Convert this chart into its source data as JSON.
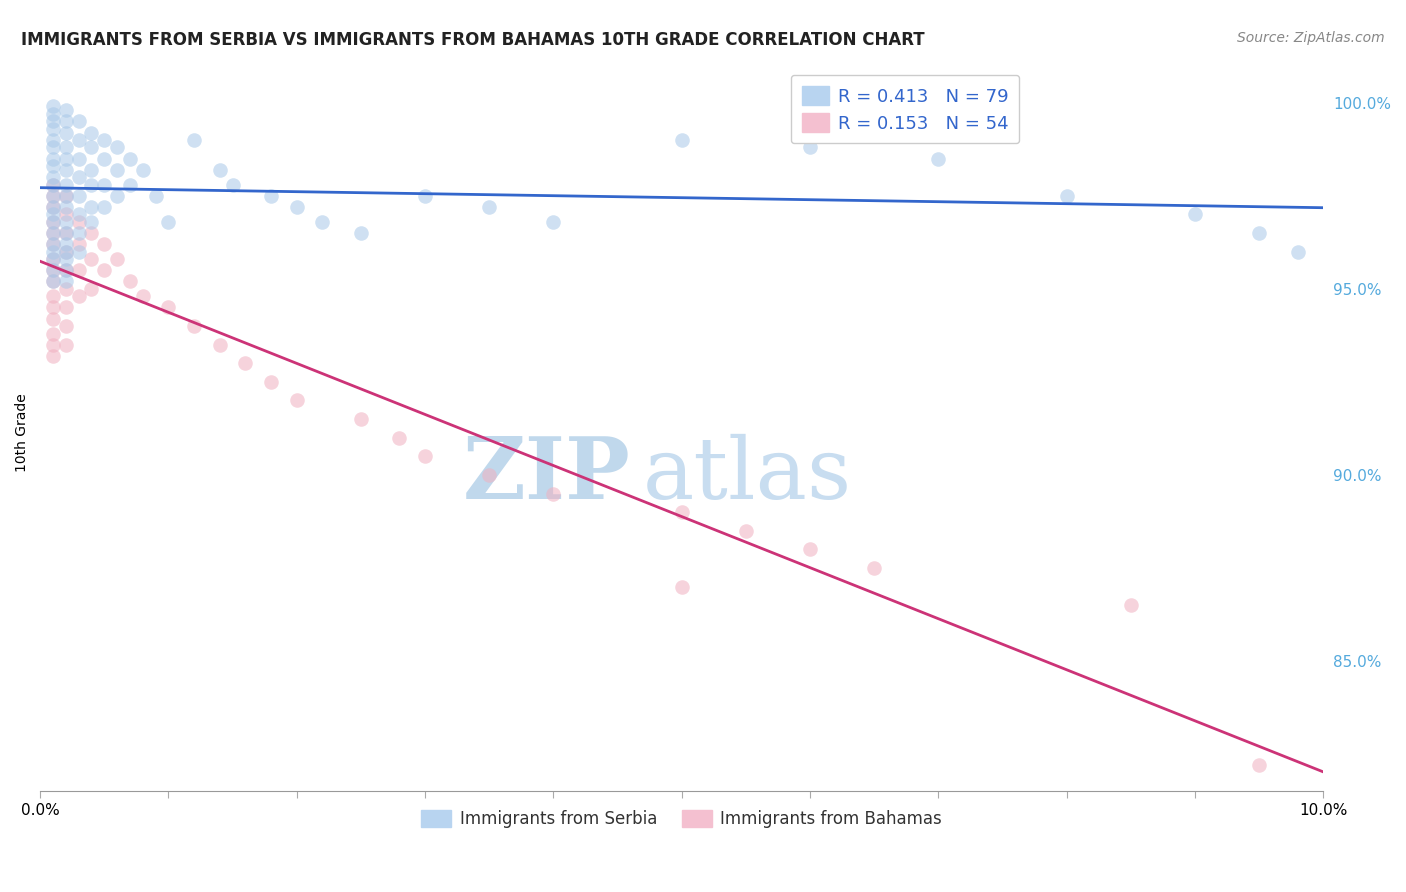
{
  "title": "IMMIGRANTS FROM SERBIA VS IMMIGRANTS FROM BAHAMAS 10TH GRADE CORRELATION CHART",
  "source": "Source: ZipAtlas.com",
  "ylabel": "10th Grade",
  "series_blue": {
    "name": "Immigrants from Serbia",
    "color": "#a8c8e8",
    "edge_color": "#a8c8e8",
    "line_color": "#3366cc",
    "R": 0.413,
    "N": 79,
    "x": [
      0.001,
      0.001,
      0.001,
      0.001,
      0.001,
      0.001,
      0.001,
      0.001,
      0.001,
      0.001,
      0.001,
      0.001,
      0.001,
      0.001,
      0.001,
      0.001,
      0.001,
      0.001,
      0.001,
      0.001,
      0.002,
      0.002,
      0.002,
      0.002,
      0.002,
      0.002,
      0.002,
      0.002,
      0.002,
      0.002,
      0.002,
      0.002,
      0.002,
      0.002,
      0.002,
      0.002,
      0.003,
      0.003,
      0.003,
      0.003,
      0.003,
      0.003,
      0.003,
      0.003,
      0.004,
      0.004,
      0.004,
      0.004,
      0.004,
      0.004,
      0.005,
      0.005,
      0.005,
      0.005,
      0.006,
      0.006,
      0.006,
      0.007,
      0.007,
      0.008,
      0.009,
      0.01,
      0.012,
      0.014,
      0.015,
      0.018,
      0.02,
      0.022,
      0.025,
      0.03,
      0.035,
      0.04,
      0.05,
      0.06,
      0.07,
      0.08,
      0.09,
      0.095,
      0.098
    ],
    "y": [
      0.999,
      0.997,
      0.995,
      0.993,
      0.99,
      0.988,
      0.985,
      0.983,
      0.98,
      0.978,
      0.975,
      0.972,
      0.97,
      0.968,
      0.965,
      0.962,
      0.96,
      0.958,
      0.955,
      0.952,
      0.998,
      0.995,
      0.992,
      0.988,
      0.985,
      0.982,
      0.978,
      0.975,
      0.972,
      0.968,
      0.965,
      0.962,
      0.96,
      0.958,
      0.955,
      0.952,
      0.995,
      0.99,
      0.985,
      0.98,
      0.975,
      0.97,
      0.965,
      0.96,
      0.992,
      0.988,
      0.982,
      0.978,
      0.972,
      0.968,
      0.99,
      0.985,
      0.978,
      0.972,
      0.988,
      0.982,
      0.975,
      0.985,
      0.978,
      0.982,
      0.975,
      0.968,
      0.99,
      0.982,
      0.978,
      0.975,
      0.972,
      0.968,
      0.965,
      0.975,
      0.972,
      0.968,
      0.99,
      0.988,
      0.985,
      0.975,
      0.97,
      0.965,
      0.96
    ]
  },
  "series_pink": {
    "name": "Immigrants from Bahamas",
    "color": "#f0b0c0",
    "edge_color": "#f0b0c0",
    "line_color": "#cc3377",
    "R": 0.153,
    "N": 54,
    "x": [
      0.001,
      0.001,
      0.001,
      0.001,
      0.001,
      0.001,
      0.001,
      0.001,
      0.001,
      0.001,
      0.001,
      0.001,
      0.001,
      0.001,
      0.001,
      0.002,
      0.002,
      0.002,
      0.002,
      0.002,
      0.002,
      0.002,
      0.002,
      0.002,
      0.003,
      0.003,
      0.003,
      0.003,
      0.004,
      0.004,
      0.004,
      0.005,
      0.005,
      0.006,
      0.007,
      0.008,
      0.01,
      0.012,
      0.014,
      0.016,
      0.018,
      0.02,
      0.025,
      0.028,
      0.03,
      0.035,
      0.04,
      0.05,
      0.055,
      0.06,
      0.065,
      0.05,
      0.085,
      0.095
    ],
    "y": [
      0.978,
      0.975,
      0.972,
      0.968,
      0.965,
      0.962,
      0.958,
      0.955,
      0.952,
      0.948,
      0.945,
      0.942,
      0.938,
      0.935,
      0.932,
      0.975,
      0.97,
      0.965,
      0.96,
      0.955,
      0.95,
      0.945,
      0.94,
      0.935,
      0.968,
      0.962,
      0.955,
      0.948,
      0.965,
      0.958,
      0.95,
      0.962,
      0.955,
      0.958,
      0.952,
      0.948,
      0.945,
      0.94,
      0.935,
      0.93,
      0.925,
      0.92,
      0.915,
      0.91,
      0.905,
      0.9,
      0.895,
      0.89,
      0.885,
      0.88,
      0.875,
      0.87,
      0.865,
      0.822
    ]
  },
  "xlim": [
    0.0,
    0.1
  ],
  "ylim": [
    0.815,
    1.008
  ],
  "xticks": [
    0.0,
    0.01,
    0.02,
    0.03,
    0.04,
    0.05,
    0.06,
    0.07,
    0.08,
    0.09,
    0.1
  ],
  "xticklabels_show": [
    "0.0%",
    "",
    "",
    "",
    "",
    "",
    "",
    "",
    "",
    "",
    "10.0%"
  ],
  "right_yticks": [
    1.0,
    0.95,
    0.9,
    0.85
  ],
  "right_yticklabels": [
    "100.0%",
    "95.0%",
    "90.0%",
    "85.0%"
  ],
  "watermark_zip_color": "#c0d8ec",
  "watermark_atlas_color": "#c8ddf0",
  "legend_R1": "R = 0.413",
  "legend_N1": "N = 79",
  "legend_R2": "R = 0.153",
  "legend_N2": "N = 54",
  "grid_color": "#dddddd",
  "title_fontsize": 12,
  "axis_label_fontsize": 10,
  "right_tick_color": "#55aadd",
  "scatter_size": 110,
  "scatter_alpha": 0.55
}
